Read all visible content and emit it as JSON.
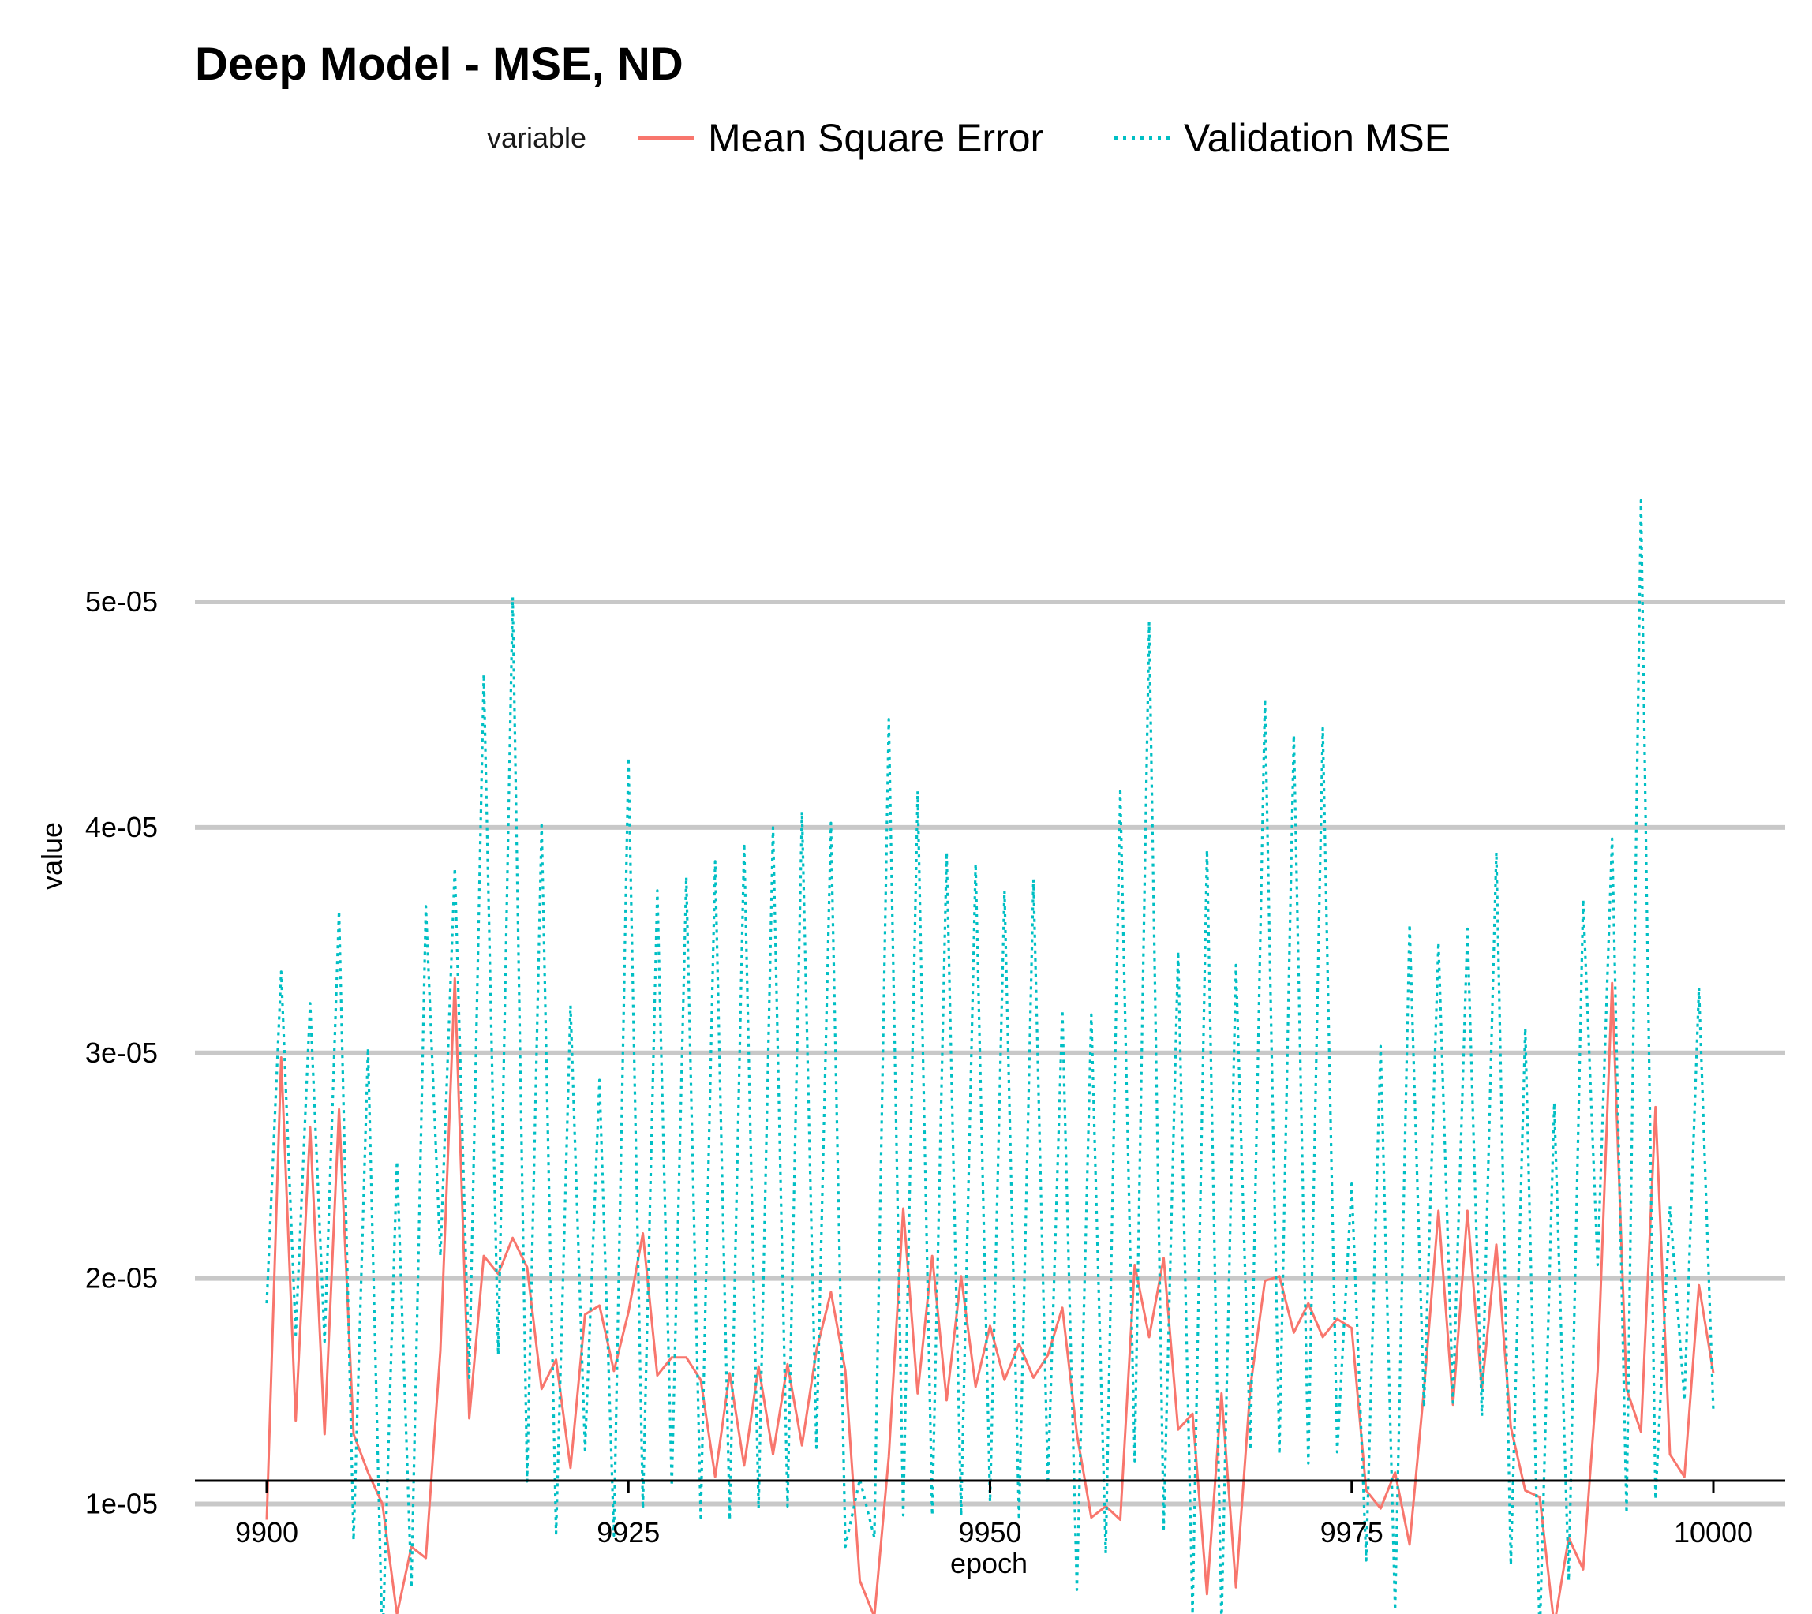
{
  "chart_data": {
    "type": "line",
    "title": "Deep Model - MSE, ND",
    "xlabel": "epoch",
    "ylabel": "value",
    "xlim": [
      9895,
      10005
    ],
    "ylim": [
      1.5e-06,
      5.65e-05
    ],
    "x_ticks": [
      9900,
      9925,
      9950,
      9975,
      10000
    ],
    "x_tick_labels": [
      "9900",
      "9925",
      "9950",
      "9975",
      "10000"
    ],
    "y_ticks": [
      1e-05,
      2e-05,
      3e-05,
      4e-05,
      5e-05
    ],
    "y_tick_labels": [
      "1e-05",
      "2e-05",
      "3e-05",
      "4e-05",
      "5e-05"
    ],
    "grid": "horizontal major",
    "legend": {
      "title": "variable",
      "placement": "top"
    },
    "x": [
      9900,
      9901,
      9902,
      9903,
      9904,
      9905,
      9906,
      9907,
      9908,
      9909,
      9910,
      9911,
      9912,
      9913,
      9914,
      9915,
      9916,
      9917,
      9918,
      9919,
      9920,
      9921,
      9922,
      9923,
      9924,
      9925,
      9926,
      9927,
      9928,
      9929,
      9930,
      9931,
      9932,
      9933,
      9934,
      9935,
      9936,
      9937,
      9938,
      9939,
      9940,
      9941,
      9942,
      9943,
      9944,
      9945,
      9946,
      9947,
      9948,
      9949,
      9950,
      9951,
      9952,
      9953,
      9954,
      9955,
      9956,
      9957,
      9958,
      9959,
      9960,
      9961,
      9962,
      9963,
      9964,
      9965,
      9966,
      9967,
      9968,
      9969,
      9970,
      9971,
      9972,
      9973,
      9974,
      9975,
      9976,
      9977,
      9978,
      9979,
      9980,
      9981,
      9982,
      9983,
      9984,
      9985,
      9986,
      9987,
      9988,
      9989,
      9990,
      9991,
      9992,
      9993,
      9994,
      9995,
      9996,
      9997,
      9998,
      9999,
      10000
    ],
    "series": [
      {
        "name": "Mean Square Error",
        "color": "#f8766d",
        "linetype": "solid",
        "values": [
          9.3e-06,
          2.98e-05,
          1.37e-05,
          2.67e-05,
          1.31e-05,
          2.75e-05,
          1.31e-05,
          1.14e-05,
          1e-05,
          5.1e-06,
          8.1e-06,
          7.6e-06,
          1.68e-05,
          3.33e-05,
          1.38e-05,
          2.1e-05,
          2.02e-05,
          2.18e-05,
          2.05e-05,
          1.51e-05,
          1.64e-05,
          1.16e-05,
          1.84e-05,
          1.88e-05,
          1.59e-05,
          1.85e-05,
          2.2e-05,
          1.57e-05,
          1.65e-05,
          1.65e-05,
          1.55e-05,
          1.12e-05,
          1.58e-05,
          1.17e-05,
          1.61e-05,
          1.22e-05,
          1.62e-05,
          1.26e-05,
          1.68e-05,
          1.94e-05,
          1.59e-05,
          6.6e-06,
          5e-06,
          1.21e-05,
          2.31e-05,
          1.49e-05,
          2.1e-05,
          1.46e-05,
          2.01e-05,
          1.52e-05,
          1.79e-05,
          1.55e-05,
          1.71e-05,
          1.56e-05,
          1.66e-05,
          1.87e-05,
          1.31e-05,
          9.4e-06,
          9.9e-06,
          9.3e-06,
          2.06e-05,
          1.74e-05,
          2.09e-05,
          1.33e-05,
          1.4e-05,
          6e-06,
          1.49e-05,
          6.3e-06,
          1.52e-05,
          1.99e-05,
          2.01e-05,
          1.76e-05,
          1.89e-05,
          1.74e-05,
          1.82e-05,
          1.78e-05,
          1.06e-05,
          9.8e-06,
          1.14e-05,
          8.2e-06,
          1.51e-05,
          2.3e-05,
          1.44e-05,
          2.3e-05,
          1.51e-05,
          2.15e-05,
          1.34e-05,
          1.06e-05,
          1.03e-05,
          4.6e-06,
          8.5e-06,
          7.1e-06,
          1.59e-05,
          3.31e-05,
          1.51e-05,
          1.32e-05,
          2.76e-05,
          1.22e-05,
          1.12e-05,
          1.97e-05,
          1.58e-05
        ]
      },
      {
        "name": "Validation MSE",
        "color": "#00bfc4",
        "linetype": "dotted",
        "values": [
          1.89e-05,
          3.36e-05,
          1.75e-05,
          3.22e-05,
          1.72e-05,
          3.63e-05,
          8.4e-06,
          3.02e-05,
          3.6e-06,
          2.52e-05,
          6.3e-06,
          3.65e-05,
          2.1e-05,
          3.82e-05,
          1.56e-05,
          4.68e-05,
          1.66e-05,
          5.02e-05,
          1.1e-05,
          4.01e-05,
          8.7e-06,
          3.21e-05,
          1.24e-05,
          2.88e-05,
          8.6e-06,
          4.31e-05,
          9.8e-06,
          3.72e-05,
          1.08e-05,
          3.78e-05,
          9.4e-06,
          3.85e-05,
          9.3e-06,
          3.93e-05,
          9.8e-06,
          4e-05,
          9.9e-06,
          4.07e-05,
          1.25e-05,
          4.02e-05,
          8.1e-06,
          1.11e-05,
          8.5e-06,
          4.48e-05,
          9.5e-06,
          4.16e-05,
          9.5e-06,
          3.89e-05,
          9.5e-06,
          3.84e-05,
          1.01e-05,
          3.72e-05,
          9.3e-06,
          3.77e-05,
          1.09e-05,
          3.19e-05,
          6.2e-06,
          3.17e-05,
          7.8e-06,
          4.16e-05,
          1.19e-05,
          4.91e-05,
          8.9e-06,
          3.45e-05,
          5.1e-06,
          3.9e-05,
          4.7e-06,
          3.39e-05,
          1.24e-05,
          4.57e-05,
          1.22e-05,
          4.41e-05,
          1.18e-05,
          4.44e-05,
          1.23e-05,
          2.42e-05,
          7.5e-06,
          3.03e-05,
          5.3e-06,
          3.57e-05,
          1.43e-05,
          3.49e-05,
          1.45e-05,
          3.55e-05,
          1.39e-05,
          3.89e-05,
          7.3e-06,
          3.11e-05,
          4.1e-06,
          2.78e-05,
          6.6e-06,
          3.68e-05,
          2.06e-05,
          3.95e-05,
          9.6e-06,
          5.45e-05,
          1.02e-05,
          2.32e-05,
          1.46e-05,
          3.29e-05,
          1.41e-05
        ]
      }
    ]
  }
}
